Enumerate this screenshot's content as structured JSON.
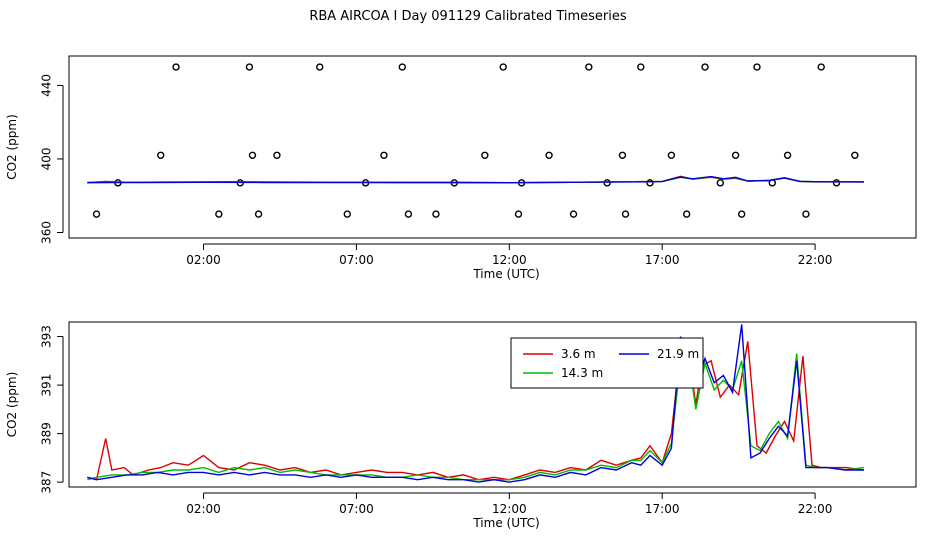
{
  "title": "RBA AIRCOA I  Day 091129  Calibrated Timeseries",
  "colors": {
    "s1": "#dd0000",
    "s2": "#00bb00",
    "s3": "#0000dd",
    "axis": "#000000"
  },
  "chart_data": [
    {
      "type": "line+scatter",
      "xlabel": "Time (UTC)",
      "ylabel": "CO2 (ppm)",
      "xlim": [
        -2.4,
        25.3
      ],
      "ylim": [
        357,
        456
      ],
      "xticks": [
        2,
        7,
        12,
        17,
        22
      ],
      "xtick_labels": [
        "02:00",
        "07:00",
        "12:00",
        "17:00",
        "22:00"
      ],
      "yticks": [
        360,
        400,
        440
      ],
      "ytick_labels": [
        "360",
        "400",
        "440"
      ],
      "series": [
        {
          "name": "3.6 m",
          "color": "#dd0000",
          "x": [
            -1.8,
            -1.2,
            -0.5,
            0.5,
            1.5,
            3,
            5,
            8,
            10,
            12,
            14,
            16,
            17,
            17.6,
            18,
            18.6,
            19,
            19.4,
            19.8,
            20.5,
            21,
            21.5,
            22,
            23.6
          ],
          "y": [
            387.2,
            387.8,
            387.3,
            387.4,
            387.5,
            387.6,
            387.4,
            387.3,
            387.2,
            387.1,
            387.3,
            387.6,
            387.8,
            390.5,
            389,
            390,
            389,
            389.5,
            388,
            388.3,
            389.6,
            387.8,
            387.5,
            387.5
          ]
        },
        {
          "name": "14.3 m",
          "color": "#00bb00",
          "x": [
            -1.8,
            -1.2,
            0,
            2,
            4,
            6,
            8,
            10,
            12,
            14,
            16,
            17,
            17.6,
            18,
            18.6,
            19,
            19.4,
            19.8,
            20.5,
            21,
            21.5,
            22,
            23.6
          ],
          "y": [
            387.2,
            387.3,
            387.3,
            387.4,
            387.3,
            387.3,
            387.2,
            387.2,
            387.1,
            387.3,
            387.6,
            387.8,
            390,
            389,
            390.2,
            389.2,
            389.8,
            388,
            388.4,
            389.8,
            387.9,
            387.6,
            387.5
          ]
        },
        {
          "name": "21.9 m",
          "color": "#0000dd",
          "x": [
            -1.8,
            -1,
            0,
            2,
            4,
            6,
            8,
            10,
            12,
            14,
            16,
            17,
            17.6,
            18,
            18.6,
            19,
            19.4,
            19.8,
            20.5,
            21,
            21.5,
            22,
            23.6
          ],
          "y": [
            387.1,
            387.2,
            387.2,
            387.3,
            387.2,
            387.2,
            387.2,
            387.2,
            387.1,
            387.3,
            387.5,
            387.7,
            390.2,
            389.2,
            390.4,
            389.2,
            390,
            388,
            388.3,
            389.7,
            387.8,
            387.6,
            387.5
          ]
        }
      ],
      "points": {
        "x": [
          -1.5,
          -0.8,
          0.6,
          1.1,
          2.5,
          3.2,
          3.5,
          3.6,
          3.8,
          4.4,
          5.8,
          6.7,
          7.3,
          7.9,
          8.5,
          8.7,
          9.6,
          10.2,
          11.2,
          11.8,
          12.3,
          12.4,
          13.3,
          14.1,
          14.6,
          15.2,
          15.7,
          15.8,
          16.3,
          16.6,
          17.3,
          17.8,
          18.4,
          18.9,
          19.4,
          19.6,
          20.1,
          20.6,
          21.1,
          21.7,
          22.2,
          22.7,
          23.3
        ],
        "y": [
          370,
          387,
          402,
          450,
          370,
          387,
          450,
          402,
          370,
          402,
          450,
          370,
          387,
          402,
          450,
          370,
          370,
          387,
          402,
          450,
          370,
          387,
          402,
          370,
          450,
          387,
          402,
          370,
          450,
          387,
          402,
          370,
          450,
          387,
          402,
          370,
          450,
          387,
          402,
          370,
          450,
          387,
          402
        ]
      }
    },
    {
      "type": "line",
      "xlabel": "Time (UTC)",
      "ylabel": "CO2 (ppm)",
      "xlim": [
        -2.4,
        25.3
      ],
      "ylim": [
        386.8,
        393.6
      ],
      "xticks": [
        2,
        7,
        12,
        17,
        22
      ],
      "xtick_labels": [
        "02:00",
        "07:00",
        "12:00",
        "17:00",
        "22:00"
      ],
      "yticks": [
        387,
        389,
        391,
        393
      ],
      "ytick_labels": [
        "387",
        "389",
        "391",
        "393"
      ],
      "legend_position": "top-right",
      "series": [
        {
          "name": "3.6 m",
          "color": "#dd0000",
          "x": [
            -1.8,
            -1.5,
            -1.2,
            -1,
            -0.6,
            -0.3,
            0.2,
            0.6,
            1,
            1.5,
            2,
            2.5,
            3,
            3.5,
            4,
            4.5,
            5,
            5.5,
            6,
            6.5,
            7,
            7.5,
            8,
            8.5,
            9,
            9.5,
            10,
            10.5,
            11,
            11.5,
            12,
            12.5,
            13,
            13.5,
            14,
            14.5,
            15,
            15.5,
            16,
            16.3,
            16.6,
            17,
            17.3,
            17.6,
            17.9,
            18.1,
            18.3,
            18.6,
            18.9,
            19.2,
            19.5,
            19.8,
            20.1,
            20.4,
            20.7,
            21,
            21.3,
            21.6,
            21.9,
            22.2,
            22.6,
            23,
            23.6
          ],
          "y": [
            387.2,
            387.1,
            388.8,
            387.5,
            387.6,
            387.3,
            387.5,
            387.6,
            387.8,
            387.7,
            388.1,
            387.6,
            387.5,
            387.8,
            387.7,
            387.5,
            387.6,
            387.4,
            387.5,
            387.3,
            387.4,
            387.5,
            387.4,
            387.4,
            387.3,
            387.4,
            387.2,
            387.3,
            387.1,
            387.2,
            387.1,
            387.3,
            387.5,
            387.4,
            387.6,
            387.5,
            387.9,
            387.7,
            387.9,
            388.0,
            388.5,
            387.8,
            389.0,
            392.5,
            392.0,
            390.2,
            391.8,
            392.0,
            390.5,
            391.0,
            390.6,
            392.8,
            388.5,
            388.2,
            388.9,
            389.5,
            388.7,
            392.2,
            387.7,
            387.6,
            387.6,
            387.6,
            387.5
          ]
        },
        {
          "name": "14.3 m",
          "color": "#00bb00",
          "x": [
            -1.8,
            -1.5,
            -1,
            -0.5,
            0,
            0.5,
            1,
            1.5,
            2,
            2.5,
            3,
            3.5,
            4,
            4.5,
            5,
            5.5,
            6,
            6.5,
            7,
            7.5,
            8,
            8.5,
            9,
            9.5,
            10,
            10.5,
            11,
            11.5,
            12,
            12.5,
            13,
            13.5,
            14,
            14.5,
            15,
            15.5,
            16,
            16.3,
            16.6,
            17,
            17.3,
            17.6,
            17.9,
            18.1,
            18.4,
            18.7,
            19,
            19.3,
            19.6,
            19.9,
            20.2,
            20.5,
            20.8,
            21.1,
            21.4,
            21.7,
            22,
            22.4,
            23,
            23.6
          ],
          "y": [
            387.1,
            387.2,
            387.3,
            387.3,
            387.4,
            387.4,
            387.5,
            387.5,
            387.6,
            387.4,
            387.6,
            387.5,
            387.6,
            387.4,
            387.5,
            387.4,
            387.3,
            387.3,
            387.3,
            387.3,
            387.2,
            387.2,
            387.3,
            387.2,
            387.2,
            387.1,
            387.1,
            387.1,
            387.1,
            387.2,
            387.4,
            387.3,
            387.5,
            387.5,
            387.7,
            387.6,
            387.9,
            387.9,
            388.3,
            387.8,
            388.6,
            392.0,
            391.8,
            390.0,
            391.9,
            390.8,
            391.2,
            390.8,
            392.0,
            388.5,
            388.3,
            389.0,
            389.5,
            388.8,
            392.3,
            387.7,
            387.6,
            387.6,
            387.5,
            387.6
          ]
        },
        {
          "name": "21.9 m",
          "color": "#0000dd",
          "x": [
            -1.8,
            -1.5,
            -1,
            -0.5,
            0,
            0.5,
            1,
            1.5,
            2,
            2.5,
            3,
            3.5,
            4,
            4.5,
            5,
            5.5,
            6,
            6.5,
            7,
            7.5,
            8,
            8.5,
            9,
            9.5,
            10,
            10.5,
            11,
            11.5,
            12,
            12.5,
            13,
            13.5,
            14,
            14.5,
            15,
            15.5,
            16,
            16.3,
            16.6,
            17,
            17.3,
            17.6,
            17.9,
            18.1,
            18.4,
            18.7,
            19,
            19.3,
            19.6,
            19.9,
            20.2,
            20.5,
            20.8,
            21.1,
            21.4,
            21.7,
            22,
            22.4,
            23,
            23.6
          ],
          "y": [
            387.2,
            387.1,
            387.2,
            387.3,
            387.3,
            387.4,
            387.3,
            387.4,
            387.4,
            387.3,
            387.4,
            387.3,
            387.4,
            387.3,
            387.3,
            387.2,
            387.3,
            387.2,
            387.3,
            387.2,
            387.2,
            387.2,
            387.1,
            387.2,
            387.1,
            387.1,
            387.0,
            387.1,
            387.0,
            387.1,
            387.3,
            387.2,
            387.4,
            387.3,
            387.6,
            387.5,
            387.8,
            387.7,
            388.1,
            387.7,
            388.4,
            393.0,
            391.3,
            391.0,
            392.1,
            391.1,
            391.4,
            390.7,
            393.5,
            388.0,
            388.2,
            388.8,
            389.3,
            388.9,
            392.0,
            387.6,
            387.6,
            387.6,
            387.5,
            387.5
          ]
        }
      ]
    }
  ]
}
